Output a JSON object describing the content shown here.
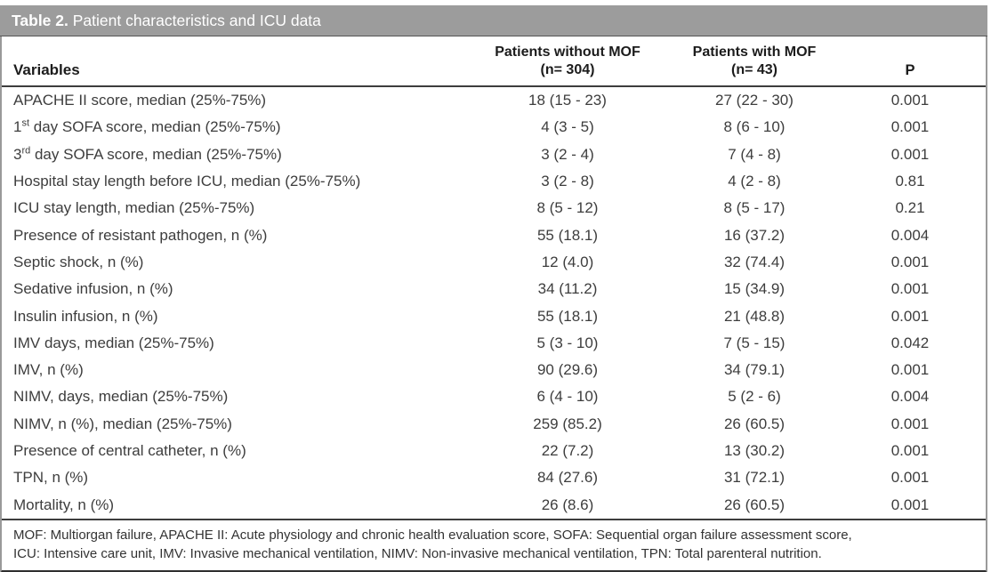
{
  "title": {
    "label": "Table 2.",
    "text": " Patient characteristics and ICU data"
  },
  "header": {
    "variables": "Variables",
    "col_without": {
      "line1": "Patients without MOF",
      "line2": "(n= 304)"
    },
    "col_with": {
      "line1": "Patients with MOF",
      "line2": "(n= 43)"
    },
    "p": "P"
  },
  "rows": [
    {
      "label": "APACHE II score, median (25%-75%)",
      "without": "18 (15 - 23)",
      "with": "27 (22 - 30)",
      "p": "0.001"
    },
    {
      "v0": "1",
      "sup": "st",
      "label": " day SOFA score, median (25%-75%)",
      "without": "4 (3 - 5)",
      "with": "8 (6 - 10)",
      "p": "0.001"
    },
    {
      "v0": "3",
      "sup": "rd",
      "label": " day SOFA score, median (25%-75%)",
      "without": "3 (2 - 4)",
      "with": "7 (4 - 8)",
      "p": "0.001"
    },
    {
      "label": "Hospital stay length before ICU, median (25%-75%)",
      "without": "3 (2 - 8)",
      "with": "4 (2 - 8)",
      "p": "0.81"
    },
    {
      "label": "ICU stay length, median (25%-75%)",
      "without": "8 (5 - 12)",
      "with": "8 (5 - 17)",
      "p": "0.21"
    },
    {
      "label": "Presence of resistant pathogen, n (%)",
      "without": "55 (18.1)",
      "with": "16 (37.2)",
      "p": "0.004"
    },
    {
      "label": "Septic shock, n (%)",
      "without": "12 (4.0)",
      "with": "32 (74.4)",
      "p": "0.001"
    },
    {
      "label": "Sedative infusion, n (%)",
      "without": "34 (11.2)",
      "with": "15 (34.9)",
      "p": "0.001"
    },
    {
      "label": "Insulin infusion, n (%)",
      "without": "55 (18.1)",
      "with": "21 (48.8)",
      "p": "0.001"
    },
    {
      "label": "IMV days, median (25%-75%)",
      "without": "5 (3 - 10)",
      "with": "7 (5 - 15)",
      "p": "0.042"
    },
    {
      "label": "IMV, n (%)",
      "without": "90 (29.6)",
      "with": "34 (79.1)",
      "p": "0.001"
    },
    {
      "label": "NIMV, days, median (25%-75%)",
      "without": "6 (4 - 10)",
      "with": "5 (2 - 6)",
      "p": "0.004"
    },
    {
      "label": "NIMV, n (%), median (25%-75%)",
      "without": "259 (85.2)",
      "with": "26 (60.5)",
      "p": "0.001"
    },
    {
      "label": "Presence of central catheter, n (%)",
      "without": "22 (7.2)",
      "with": "13 (30.2)",
      "p": "0.001"
    },
    {
      "label": "TPN, n (%)",
      "without": "84 (27.6)",
      "with": "31 (72.1)",
      "p": "0.001"
    },
    {
      "label": "Mortality, n (%)",
      "without": "26 (8.6)",
      "with": "26 (60.5)",
      "p": "0.001"
    }
  ],
  "footnote": {
    "line1": "MOF: Multiorgan failure, APACHE II: Acute physiology and chronic health evaluation score, SOFA: Sequential organ failure assessment score,",
    "line2": "ICU: Intensive care unit, IMV: Invasive mechanical ventilation, NIMV: Non-invasive mechanical ventilation, TPN: Total parenteral nutrition."
  },
  "colors": {
    "title_bar": "#9c9c9c",
    "title_text": "#ffffff",
    "body_text": "#3d3d3d",
    "border_side": "#9a9a9a",
    "border_dark": "#3d3d3d",
    "border_bottom": "#2e2e2e"
  }
}
